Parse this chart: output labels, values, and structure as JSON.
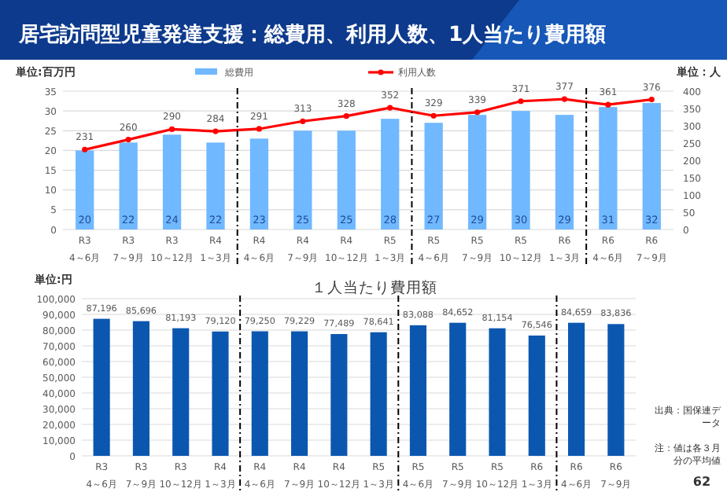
{
  "chart_data": [
    {
      "type": "bar",
      "title": "居宅訪問型児童発達支援：総費用、利用人数、1人当たり費用額",
      "ylabel": "単位:百万円",
      "y2label": "単位：人",
      "categories": [
        "R3\n4～6月",
        "R3\n7～9月",
        "R3\n10～12月",
        "R4\n1～3月",
        "R4\n4～6月",
        "R4\n7～9月",
        "R4\n10～12月",
        "R5\n1～3月",
        "R5\n4～6月",
        "R5\n7～9月",
        "R5\n10～12月",
        "R6\n1～3月",
        "R6\n4～6月",
        "R6\n7～9月"
      ],
      "series": [
        {
          "name": "総費用",
          "color": "#70b8ff",
          "values": [
            20,
            22,
            24,
            22,
            23,
            25,
            25,
            28,
            27,
            29,
            30,
            29,
            31,
            32
          ]
        },
        {
          "name": "利用人数",
          "type": "line",
          "axis": "y2",
          "color": "#ff0000",
          "values": [
            231,
            260,
            290,
            284,
            291,
            313,
            328,
            352,
            329,
            339,
            371,
            377,
            361,
            376
          ]
        }
      ],
      "ylim": [
        0,
        35
      ],
      "yticks": [
        0,
        5,
        10,
        15,
        20,
        25,
        30,
        35
      ],
      "y2lim": [
        0,
        400
      ],
      "y2ticks": [
        0,
        50,
        100,
        150,
        200,
        250,
        300,
        350,
        400
      ],
      "data_labels": true,
      "grid": "y",
      "legend": "top",
      "marker": "circle"
    },
    {
      "type": "bar",
      "title": "１人当たり費用額",
      "ylabel": "単位:円",
      "categories": [
        "R3\n4～6月",
        "R3\n7～9月",
        "R3\n10～12月",
        "R4\n1～3月",
        "R4\n4～6月",
        "R4\n7～9月",
        "R4\n10～12月",
        "R5\n1～3月",
        "R5\n4～6月",
        "R5\n7～9月",
        "R5\n10～12月",
        "R6\n1～3月",
        "R6\n4～6月",
        "R6\n7～9月"
      ],
      "values": [
        87196,
        85696,
        81193,
        79120,
        79250,
        79229,
        77489,
        78641,
        83088,
        84652,
        81154,
        76546,
        84659,
        83836
      ],
      "color": "#0b57b0",
      "ylim": [
        0,
        100000
      ],
      "yticks": [
        {
          "value": 0,
          "label": "0"
        },
        {
          "value": 10000,
          "label": "10,000"
        },
        {
          "value": 20000,
          "label": "20,000"
        },
        {
          "value": 30000,
          "label": "30,000"
        },
        {
          "value": 40000,
          "label": "40,000"
        },
        {
          "value": 50000,
          "label": "50,000"
        },
        {
          "value": 60000,
          "label": "60,000"
        },
        {
          "value": 70000,
          "label": "70,000"
        },
        {
          "value": 80000,
          "label": "80,000"
        },
        {
          "value": 90000,
          "label": "90,000"
        },
        {
          "value": 100000,
          "label": "100,000"
        }
      ],
      "value_labels": [
        "87,196",
        "85,696",
        "81,193",
        "79,120",
        "79,250",
        "79,229",
        "77,489",
        "78,641",
        "83,088",
        "84,652",
        "81,154",
        "76,546",
        "84,659",
        "83,836"
      ],
      "grid": "y",
      "annotations": [
        "出典：国保連データ",
        "注：値は各３月分の平均値",
        "62"
      ]
    }
  ]
}
